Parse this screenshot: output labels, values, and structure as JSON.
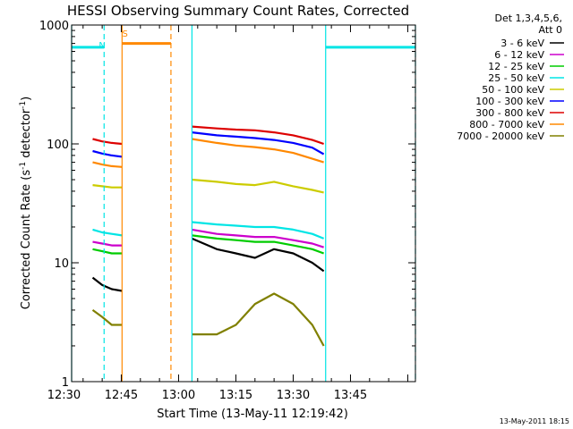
{
  "chart_data": {
    "type": "line",
    "title": "HESSI Observing Summary Count Rates, Corrected",
    "xlabel": "Start Time (13-May-11 12:19:42)",
    "ylabel_main": "Corrected Count Rate (s",
    "ylabel_sup1": "-1",
    "ylabel_mid": " detector",
    "ylabel_sup2": "-1",
    "ylabel_end": ")",
    "y_scale": "log",
    "ylim": [
      1,
      1000
    ],
    "xlim_minutes": [
      12.0,
      102.0
    ],
    "x_unit": "minutes after 12:20",
    "y_ticks": [
      {
        "value": 1,
        "label": "1"
      },
      {
        "value": 10,
        "label": "10"
      },
      {
        "value": 100,
        "label": "100"
      },
      {
        "value": 1000,
        "label": "1000"
      }
    ],
    "x_ticks": [
      {
        "value": 10,
        "label": "12:30"
      },
      {
        "value": 25,
        "label": "12:45"
      },
      {
        "value": 40,
        "label": "13:00"
      },
      {
        "value": 55,
        "label": "13:15"
      },
      {
        "value": 70,
        "label": "13:30"
      },
      {
        "value": 85,
        "label": "13:45"
      }
    ],
    "legend": {
      "placement": "right",
      "header_1": "Det 1,3,4,5,6,",
      "header_2": "Att 0"
    },
    "series": [
      {
        "name": "3 - 6 keV",
        "color": "#000000",
        "x": [
          17.5,
          20,
          22.5,
          25.2,
          43.5,
          50,
          55,
          60,
          65,
          70,
          75,
          78
        ],
        "y": [
          7.5,
          6.5,
          6.0,
          5.8,
          16,
          13,
          12,
          11,
          13,
          12,
          10,
          8.5
        ]
      },
      {
        "name": "6 - 12 keV",
        "color": "#cc00cc",
        "x": [
          17.5,
          20,
          22.5,
          25.2,
          43.5,
          50,
          55,
          60,
          65,
          70,
          75,
          78
        ],
        "y": [
          15,
          14.5,
          14,
          14,
          19,
          17.5,
          17,
          16.5,
          16.5,
          15.5,
          14.5,
          13.5
        ]
      },
      {
        "name": "12 - 25 keV",
        "color": "#00cc00",
        "x": [
          17.5,
          20,
          22.5,
          25.2,
          43.5,
          50,
          55,
          60,
          65,
          70,
          75,
          78
        ],
        "y": [
          13,
          12.5,
          12,
          12,
          17,
          16,
          15.5,
          15,
          15,
          14,
          13,
          12
        ]
      },
      {
        "name": "25 - 50 keV",
        "color": "#00e5e5",
        "x": [
          17.5,
          20,
          22.5,
          25.2,
          43.5,
          50,
          55,
          60,
          65,
          70,
          75,
          78
        ],
        "y": [
          19,
          18,
          17.5,
          17,
          22,
          21,
          20.5,
          20,
          20,
          19,
          17.5,
          16
        ]
      },
      {
        "name": "50 - 100 keV",
        "color": "#cccc00",
        "x": [
          17.5,
          20,
          22.5,
          25.2,
          43.5,
          50,
          55,
          60,
          65,
          70,
          75,
          78
        ],
        "y": [
          45,
          44,
          43,
          43,
          50,
          48,
          46,
          45,
          48,
          44,
          41,
          39
        ]
      },
      {
        "name": "100 - 300 keV",
        "color": "#0000ff",
        "x": [
          17.5,
          20,
          22.5,
          25.2,
          43.5,
          50,
          55,
          60,
          65,
          70,
          75,
          78
        ],
        "y": [
          87,
          83,
          80,
          78,
          125,
          118,
          115,
          112,
          108,
          102,
          93,
          82
        ]
      },
      {
        "name": "300 - 800 keV",
        "color": "#dd0000",
        "x": [
          17.5,
          20,
          22.5,
          25.2,
          43.5,
          50,
          55,
          60,
          65,
          70,
          75,
          78
        ],
        "y": [
          110,
          105,
          102,
          100,
          140,
          135,
          132,
          130,
          125,
          118,
          108,
          100
        ]
      },
      {
        "name": "800 - 7000 keV",
        "color": "#ff8800",
        "x": [
          17.5,
          20,
          22.5,
          25.2,
          43.5,
          50,
          55,
          60,
          65,
          70,
          75,
          78
        ],
        "y": [
          70,
          67,
          65,
          64,
          110,
          102,
          97,
          94,
          90,
          84,
          75,
          70
        ]
      },
      {
        "name": "7000 - 20000 keV",
        "color": "#808000",
        "x": [
          17.5,
          20,
          22.5,
          25.2,
          43.5,
          50,
          55,
          60,
          65,
          70,
          75,
          78
        ],
        "y": [
          4.0,
          3.5,
          3.0,
          3.0,
          2.5,
          2.5,
          3.0,
          4.5,
          5.5,
          4.5,
          3.0,
          2.0
        ]
      }
    ],
    "annotations": [
      {
        "label": "N",
        "x": 20.0,
        "y": 640
      },
      {
        "label": "S",
        "x": 26.0,
        "y": 800
      }
    ],
    "night_level": 650,
    "night_color": "#00e5e5",
    "saa_level": 700,
    "saa_color": "#ff8800",
    "night_intervals": [
      [
        12.0,
        20.5
      ],
      [
        78.5,
        102.0
      ]
    ],
    "saa_intervals": [
      [
        25.2,
        38.0
      ]
    ],
    "cyan_solid_lines": [
      12.0,
      43.5,
      78.5
    ],
    "cyan_dashed_lines": [
      20.5,
      102.0
    ],
    "orange_solid_lines": [
      25.2
    ],
    "orange_dashed_lines": [
      38.0
    ],
    "timestamp": "13-May-2011 18:15"
  }
}
